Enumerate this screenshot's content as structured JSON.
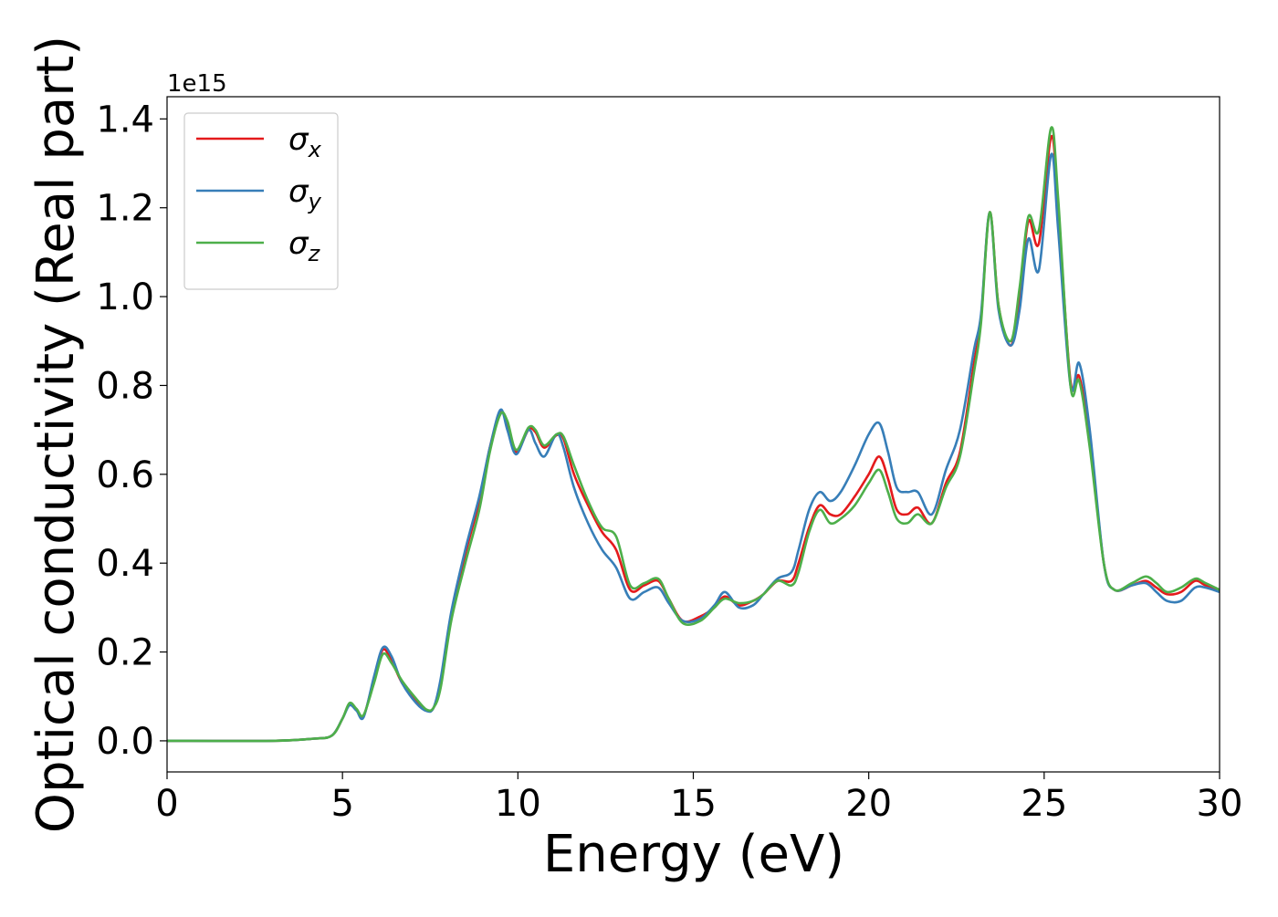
{
  "chart_data": {
    "type": "line",
    "title": "",
    "xlabel": "Energy (eV)",
    "ylabel": "Optical conductivity (Real part)",
    "y_offset_label": "1e15",
    "xlim": [
      0,
      30
    ],
    "ylim": [
      -0.07,
      1.45
    ],
    "y_scale_factor": 1000000000000000.0,
    "xticks": [
      0,
      5,
      10,
      15,
      20,
      25,
      30
    ],
    "xtick_labels": [
      "0",
      "5",
      "10",
      "15",
      "20",
      "25",
      "30"
    ],
    "yticks": [
      0.0,
      0.2,
      0.4,
      0.6,
      0.8,
      1.0,
      1.2,
      1.4
    ],
    "ytick_labels": [
      "0.0",
      "0.2",
      "0.4",
      "0.6",
      "0.8",
      "1.0",
      "1.2",
      "1.4"
    ],
    "grid": false,
    "legend_position": "top-left",
    "series": [
      {
        "name": "σx",
        "legend_symbol": "σ",
        "legend_subscript": "x",
        "color": "#e41a1c",
        "points": [
          [
            0,
            0.0
          ],
          [
            3,
            0.0
          ],
          [
            4.2,
            0.005
          ],
          [
            4.7,
            0.012
          ],
          [
            5.0,
            0.05
          ],
          [
            5.2,
            0.083
          ],
          [
            5.4,
            0.07
          ],
          [
            5.6,
            0.055
          ],
          [
            5.9,
            0.14
          ],
          [
            6.15,
            0.205
          ],
          [
            6.4,
            0.18
          ],
          [
            6.7,
            0.13
          ],
          [
            7.1,
            0.09
          ],
          [
            7.4,
            0.068
          ],
          [
            7.6,
            0.075
          ],
          [
            7.8,
            0.13
          ],
          [
            8.1,
            0.28
          ],
          [
            8.5,
            0.42
          ],
          [
            8.9,
            0.54
          ],
          [
            9.2,
            0.66
          ],
          [
            9.5,
            0.74
          ],
          [
            9.7,
            0.71
          ],
          [
            9.95,
            0.65
          ],
          [
            10.3,
            0.7
          ],
          [
            10.5,
            0.695
          ],
          [
            10.75,
            0.66
          ],
          [
            11.1,
            0.688
          ],
          [
            11.3,
            0.68
          ],
          [
            11.6,
            0.6
          ],
          [
            12.0,
            0.53
          ],
          [
            12.4,
            0.47
          ],
          [
            12.8,
            0.43
          ],
          [
            13.2,
            0.34
          ],
          [
            13.6,
            0.35
          ],
          [
            14.0,
            0.36
          ],
          [
            14.3,
            0.32
          ],
          [
            14.7,
            0.27
          ],
          [
            15.2,
            0.28
          ],
          [
            15.6,
            0.3
          ],
          [
            15.9,
            0.325
          ],
          [
            16.3,
            0.305
          ],
          [
            16.7,
            0.315
          ],
          [
            17.0,
            0.33
          ],
          [
            17.4,
            0.36
          ],
          [
            17.8,
            0.36
          ],
          [
            18.0,
            0.4
          ],
          [
            18.3,
            0.48
          ],
          [
            18.6,
            0.53
          ],
          [
            18.9,
            0.51
          ],
          [
            19.2,
            0.51
          ],
          [
            19.6,
            0.55
          ],
          [
            20.0,
            0.6
          ],
          [
            20.3,
            0.64
          ],
          [
            20.55,
            0.59
          ],
          [
            20.8,
            0.52
          ],
          [
            21.1,
            0.51
          ],
          [
            21.4,
            0.525
          ],
          [
            21.8,
            0.49
          ],
          [
            22.2,
            0.58
          ],
          [
            22.6,
            0.65
          ],
          [
            23.0,
            0.85
          ],
          [
            23.2,
            0.95
          ],
          [
            23.45,
            1.19
          ],
          [
            23.7,
            0.98
          ],
          [
            24.05,
            0.89
          ],
          [
            24.3,
            1.0
          ],
          [
            24.55,
            1.17
          ],
          [
            24.85,
            1.12
          ],
          [
            25.2,
            1.36
          ],
          [
            25.4,
            1.2
          ],
          [
            25.75,
            0.81
          ],
          [
            26.0,
            0.82
          ],
          [
            26.3,
            0.68
          ],
          [
            26.7,
            0.4
          ],
          [
            27.0,
            0.34
          ],
          [
            27.5,
            0.35
          ],
          [
            27.9,
            0.36
          ],
          [
            28.2,
            0.345
          ],
          [
            28.5,
            0.33
          ],
          [
            28.9,
            0.335
          ],
          [
            29.3,
            0.36
          ],
          [
            29.6,
            0.35
          ],
          [
            30.0,
            0.34
          ]
        ]
      },
      {
        "name": "σy",
        "legend_symbol": "σ",
        "legend_subscript": "y",
        "color": "#377eb8",
        "points": [
          [
            0,
            0.0
          ],
          [
            3,
            0.0
          ],
          [
            4.2,
            0.005
          ],
          [
            4.7,
            0.012
          ],
          [
            5.0,
            0.05
          ],
          [
            5.2,
            0.08
          ],
          [
            5.4,
            0.068
          ],
          [
            5.6,
            0.053
          ],
          [
            5.9,
            0.145
          ],
          [
            6.15,
            0.21
          ],
          [
            6.4,
            0.19
          ],
          [
            6.7,
            0.13
          ],
          [
            7.1,
            0.085
          ],
          [
            7.4,
            0.067
          ],
          [
            7.6,
            0.075
          ],
          [
            7.8,
            0.14
          ],
          [
            8.1,
            0.29
          ],
          [
            8.5,
            0.43
          ],
          [
            8.9,
            0.55
          ],
          [
            9.2,
            0.66
          ],
          [
            9.5,
            0.745
          ],
          [
            9.7,
            0.7
          ],
          [
            9.95,
            0.645
          ],
          [
            10.3,
            0.7
          ],
          [
            10.5,
            0.67
          ],
          [
            10.75,
            0.64
          ],
          [
            11.1,
            0.69
          ],
          [
            11.3,
            0.66
          ],
          [
            11.6,
            0.57
          ],
          [
            12.0,
            0.49
          ],
          [
            12.4,
            0.43
          ],
          [
            12.8,
            0.39
          ],
          [
            13.2,
            0.32
          ],
          [
            13.6,
            0.335
          ],
          [
            14.0,
            0.345
          ],
          [
            14.3,
            0.31
          ],
          [
            14.7,
            0.27
          ],
          [
            15.2,
            0.275
          ],
          [
            15.6,
            0.305
          ],
          [
            15.9,
            0.335
          ],
          [
            16.3,
            0.3
          ],
          [
            16.7,
            0.305
          ],
          [
            17.0,
            0.33
          ],
          [
            17.4,
            0.365
          ],
          [
            17.8,
            0.38
          ],
          [
            18.0,
            0.43
          ],
          [
            18.3,
            0.52
          ],
          [
            18.6,
            0.56
          ],
          [
            18.9,
            0.54
          ],
          [
            19.2,
            0.56
          ],
          [
            19.6,
            0.62
          ],
          [
            20.0,
            0.69
          ],
          [
            20.3,
            0.715
          ],
          [
            20.55,
            0.65
          ],
          [
            20.8,
            0.57
          ],
          [
            21.1,
            0.56
          ],
          [
            21.4,
            0.56
          ],
          [
            21.8,
            0.51
          ],
          [
            22.2,
            0.61
          ],
          [
            22.6,
            0.7
          ],
          [
            23.0,
            0.88
          ],
          [
            23.2,
            0.96
          ],
          [
            23.45,
            1.19
          ],
          [
            23.7,
            0.97
          ],
          [
            24.05,
            0.89
          ],
          [
            24.3,
            0.97
          ],
          [
            24.55,
            1.13
          ],
          [
            24.85,
            1.06
          ],
          [
            25.2,
            1.32
          ],
          [
            25.4,
            1.15
          ],
          [
            25.75,
            0.8
          ],
          [
            26.0,
            0.85
          ],
          [
            26.3,
            0.7
          ],
          [
            26.7,
            0.4
          ],
          [
            27.0,
            0.34
          ],
          [
            27.5,
            0.35
          ],
          [
            27.9,
            0.355
          ],
          [
            28.2,
            0.335
          ],
          [
            28.5,
            0.315
          ],
          [
            28.9,
            0.315
          ],
          [
            29.3,
            0.345
          ],
          [
            29.6,
            0.345
          ],
          [
            30.0,
            0.335
          ]
        ]
      },
      {
        "name": "σz",
        "legend_symbol": "σ",
        "legend_subscript": "z",
        "color": "#4daf4a",
        "points": [
          [
            0,
            0.0
          ],
          [
            3,
            0.0
          ],
          [
            4.2,
            0.005
          ],
          [
            4.7,
            0.012
          ],
          [
            5.0,
            0.05
          ],
          [
            5.2,
            0.085
          ],
          [
            5.4,
            0.072
          ],
          [
            5.6,
            0.058
          ],
          [
            5.9,
            0.13
          ],
          [
            6.15,
            0.195
          ],
          [
            6.4,
            0.175
          ],
          [
            6.7,
            0.135
          ],
          [
            7.1,
            0.095
          ],
          [
            7.4,
            0.07
          ],
          [
            7.6,
            0.075
          ],
          [
            7.8,
            0.12
          ],
          [
            8.1,
            0.27
          ],
          [
            8.5,
            0.4
          ],
          [
            8.9,
            0.52
          ],
          [
            9.2,
            0.65
          ],
          [
            9.5,
            0.735
          ],
          [
            9.7,
            0.72
          ],
          [
            9.95,
            0.655
          ],
          [
            10.3,
            0.705
          ],
          [
            10.5,
            0.7
          ],
          [
            10.75,
            0.665
          ],
          [
            11.1,
            0.69
          ],
          [
            11.3,
            0.685
          ],
          [
            11.6,
            0.62
          ],
          [
            12.0,
            0.54
          ],
          [
            12.4,
            0.48
          ],
          [
            12.8,
            0.46
          ],
          [
            13.2,
            0.35
          ],
          [
            13.6,
            0.355
          ],
          [
            14.0,
            0.365
          ],
          [
            14.3,
            0.32
          ],
          [
            14.7,
            0.265
          ],
          [
            15.2,
            0.27
          ],
          [
            15.6,
            0.3
          ],
          [
            15.9,
            0.32
          ],
          [
            16.3,
            0.31
          ],
          [
            16.7,
            0.315
          ],
          [
            17.0,
            0.33
          ],
          [
            17.4,
            0.36
          ],
          [
            17.8,
            0.35
          ],
          [
            18.0,
            0.38
          ],
          [
            18.3,
            0.47
          ],
          [
            18.6,
            0.52
          ],
          [
            18.9,
            0.49
          ],
          [
            19.2,
            0.5
          ],
          [
            19.6,
            0.53
          ],
          [
            20.0,
            0.58
          ],
          [
            20.3,
            0.61
          ],
          [
            20.55,
            0.56
          ],
          [
            20.8,
            0.5
          ],
          [
            21.1,
            0.49
          ],
          [
            21.4,
            0.51
          ],
          [
            21.8,
            0.49
          ],
          [
            22.2,
            0.57
          ],
          [
            22.6,
            0.64
          ],
          [
            23.0,
            0.83
          ],
          [
            23.2,
            0.94
          ],
          [
            23.45,
            1.19
          ],
          [
            23.7,
            0.98
          ],
          [
            24.05,
            0.9
          ],
          [
            24.3,
            1.02
          ],
          [
            24.55,
            1.18
          ],
          [
            24.85,
            1.15
          ],
          [
            25.2,
            1.38
          ],
          [
            25.4,
            1.22
          ],
          [
            25.75,
            0.8
          ],
          [
            26.0,
            0.81
          ],
          [
            26.3,
            0.66
          ],
          [
            26.7,
            0.4
          ],
          [
            27.0,
            0.34
          ],
          [
            27.5,
            0.355
          ],
          [
            27.9,
            0.37
          ],
          [
            28.2,
            0.355
          ],
          [
            28.5,
            0.335
          ],
          [
            28.9,
            0.345
          ],
          [
            29.3,
            0.365
          ],
          [
            29.6,
            0.355
          ],
          [
            30.0,
            0.34
          ]
        ]
      }
    ]
  }
}
